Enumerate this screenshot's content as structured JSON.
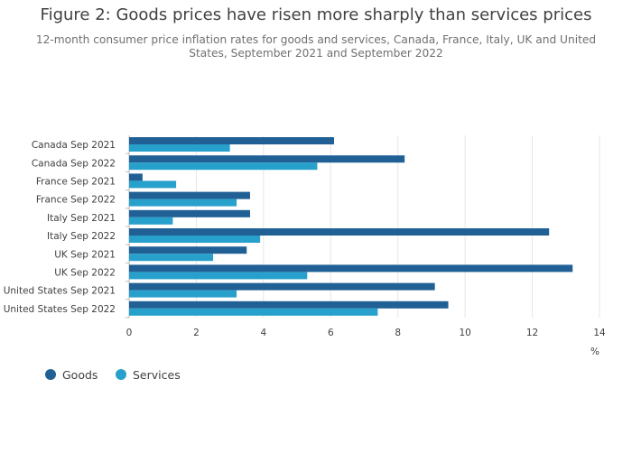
{
  "chart_data": {
    "type": "bar",
    "orientation": "horizontal",
    "title": "Figure 2: Goods prices have risen more sharply than services prices",
    "subtitle": "12-month consumer price inflation rates for goods and services, Canada, France, Italy, UK and United States, September 2021 and September 2022",
    "xlabel": "%",
    "ylabel": "",
    "xlim": [
      0,
      14
    ],
    "xticks": [
      0,
      2,
      4,
      6,
      8,
      10,
      12,
      14
    ],
    "grid": true,
    "legend_position": "bottom-left",
    "categories": [
      "Canada Sep 2021",
      "Canada Sep 2022",
      "France Sep 2021",
      "France Sep 2022",
      "Italy Sep 2021",
      "Italy Sep 2022",
      "UK Sep 2021",
      "UK Sep 2022",
      "United States Sep 2021",
      "United States Sep 2022"
    ],
    "series": [
      {
        "name": "Goods",
        "color": "#206095",
        "values": [
          6.1,
          8.2,
          0.4,
          3.6,
          3.6,
          12.5,
          3.5,
          13.2,
          9.1,
          9.5
        ]
      },
      {
        "name": "Services",
        "color": "#27a0cc",
        "values": [
          3.0,
          5.6,
          1.4,
          3.2,
          1.3,
          3.9,
          2.5,
          5.3,
          3.2,
          7.4
        ]
      }
    ]
  }
}
